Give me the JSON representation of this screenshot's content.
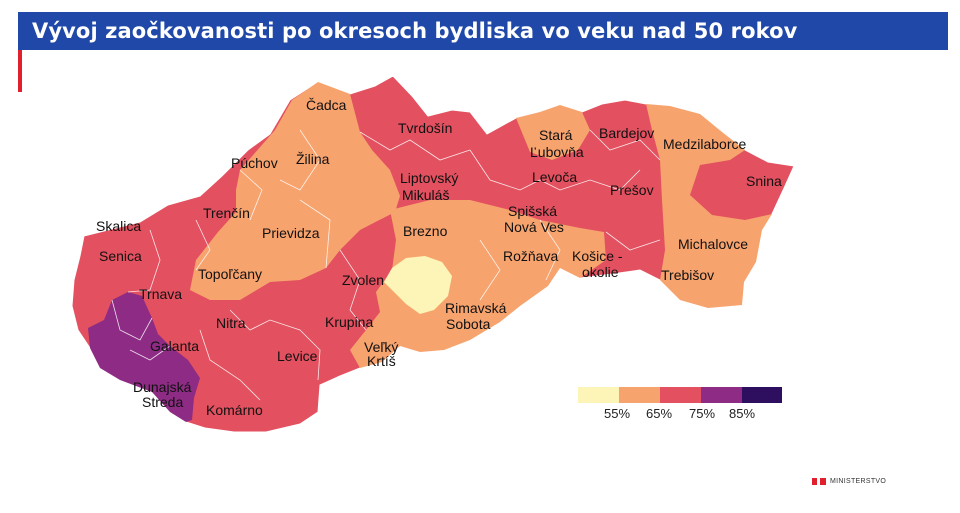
{
  "title": "Vývoj zaočkovanosti po okresoch bydliska vo veku nad 50 rokov",
  "legend": {
    "colors": [
      "#fdf5b8",
      "#f7a36e",
      "#e3505f",
      "#8e2b84",
      "#2e0f5f"
    ],
    "ticks": [
      "55%",
      "65%",
      "75%",
      "85%"
    ]
  },
  "districts": [
    {
      "name": "Čadca",
      "color": "#f7a36e"
    },
    {
      "name": "Tvrdošín",
      "color": "#f7a36e"
    },
    {
      "name": "Stará Ľubovňa",
      "lines": [
        "Stará",
        "Ľubovňa"
      ],
      "color": "#f7a36e"
    },
    {
      "name": "Bardejov",
      "color": "#e3505f"
    },
    {
      "name": "Medzilaborce",
      "color": "#f7a36e"
    },
    {
      "name": "Púchov",
      "color": "#f7a36e"
    },
    {
      "name": "Žilina",
      "color": "#f7a36e"
    },
    {
      "name": "Liptovský Mikuláš",
      "lines": [
        "Liptovský",
        "Mikuláš"
      ],
      "color": "#e3505f"
    },
    {
      "name": "Levoča",
      "color": "#e3505f"
    },
    {
      "name": "Prešov",
      "color": "#e3505f"
    },
    {
      "name": "Snina",
      "color": "#e3505f"
    },
    {
      "name": "Skalica",
      "color": "#e3505f"
    },
    {
      "name": "Trenčín",
      "color": "#e3505f"
    },
    {
      "name": "Prievidza",
      "color": "#f7a36e"
    },
    {
      "name": "Brezno",
      "color": "#f7a36e"
    },
    {
      "name": "Spišská Nová Ves",
      "lines": [
        "Spišská",
        "Nová Ves"
      ],
      "color": "#e3505f"
    },
    {
      "name": "Michalovce",
      "color": "#f7a36e"
    },
    {
      "name": "Senica",
      "color": "#e3505f"
    },
    {
      "name": "Topoľčany",
      "color": "#f7a36e"
    },
    {
      "name": "Rožňava",
      "color": "#f7a36e"
    },
    {
      "name": "Košice - okolie",
      "lines": [
        "Košice -",
        "okolie"
      ],
      "color": "#e3505f"
    },
    {
      "name": "Trebišov",
      "color": "#f7a36e"
    },
    {
      "name": "Trnava",
      "color": "#e3505f"
    },
    {
      "name": "Zvolen",
      "color": "#e3505f"
    },
    {
      "name": "Rimavská Sobota",
      "lines": [
        "Rimavská",
        "Sobota"
      ],
      "color": "#fdf5b8"
    },
    {
      "name": "Nitra",
      "color": "#e3505f"
    },
    {
      "name": "Krupina",
      "color": "#f7a36e"
    },
    {
      "name": "Galanta",
      "color": "#8e2b84"
    },
    {
      "name": "Levice",
      "color": "#e3505f"
    },
    {
      "name": "Veľký Krtíš",
      "lines": [
        "Veľký",
        "Krtíš"
      ],
      "color": "#f7a36e"
    },
    {
      "name": "Dunajská Streda",
      "lines": [
        "Dunajská",
        "Streda"
      ],
      "color": "#8e2b84"
    },
    {
      "name": "Komárno",
      "color": "#e3505f"
    }
  ],
  "footer": {
    "logo_text": "MINISTERSTVO"
  }
}
